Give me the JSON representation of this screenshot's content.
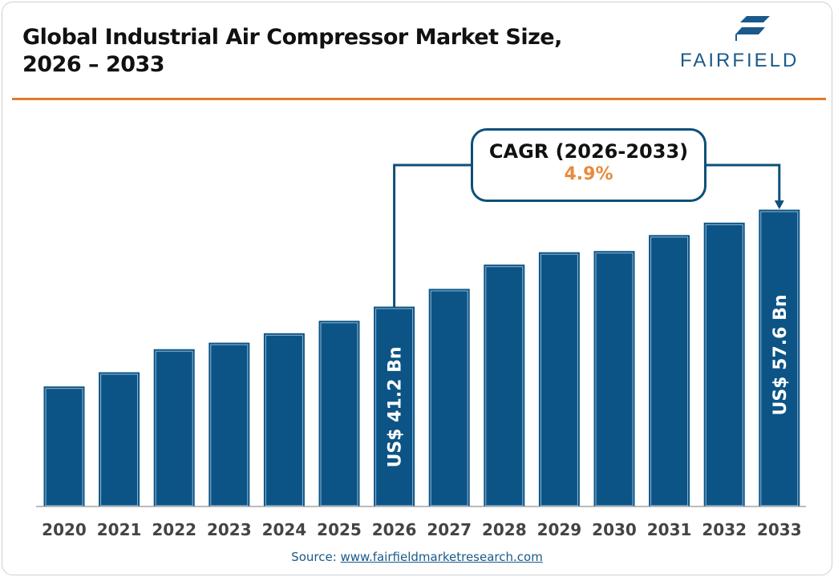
{
  "title_line1": "Global Industrial Air Compressor Market Size,",
  "title_line2": "2026 – 2033",
  "logo_text": "FAIRFIELD",
  "cagr": {
    "label": "CAGR (2026-2033)",
    "value": "4.9%"
  },
  "source": {
    "prefix": "Source: ",
    "link": "www.fairfieldmarketresearch.com"
  },
  "colors": {
    "bar": "#0d5486",
    "bar_inner": "#8fb8d8",
    "accent": "#e07a2e",
    "cagr_value": "#e98a3b"
  },
  "chart_data": {
    "type": "bar",
    "title": "Global Industrial Air Compressor Market Size, 2026 – 2033",
    "categories": [
      "2020",
      "2021",
      "2022",
      "2023",
      "2024",
      "2025",
      "2026",
      "2027",
      "2028",
      "2029",
      "2030",
      "2031",
      "2032",
      "2033"
    ],
    "values": [
      27.7,
      30.1,
      34.0,
      35.1,
      36.7,
      38.8,
      41.2,
      44.2,
      48.3,
      50.4,
      50.6,
      53.3,
      55.4,
      57.6
    ],
    "unit": "US$ Bn",
    "data_labels": {
      "2026": "US$ 41.2 Bn",
      "2033": "US$ 57.6 Bn"
    },
    "grid": false
  }
}
